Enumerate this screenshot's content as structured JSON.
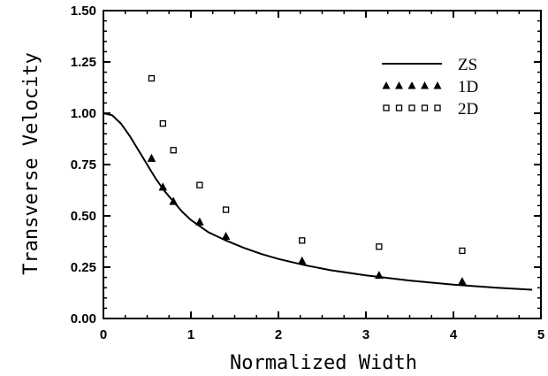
{
  "chart_data": {
    "type": "scatter",
    "xlabel": "Normalized Width",
    "ylabel": "Transverse Velocity",
    "xlim": [
      0,
      5
    ],
    "ylim": [
      0,
      1.5
    ],
    "x_ticks": [
      "0",
      "1",
      "2",
      "3",
      "4",
      "5"
    ],
    "y_ticks": [
      "0.00",
      "0.25",
      "0.50",
      "0.75",
      "1.00",
      "1.25",
      "1.50"
    ],
    "grid": false,
    "legend_position": "top-right",
    "series": [
      {
        "name": "ZS",
        "type": "line",
        "color": "#000000",
        "x": [
          0,
          0.1,
          0.2,
          0.3,
          0.4,
          0.5,
          0.6,
          0.7,
          0.8,
          0.9,
          1.0,
          1.2,
          1.4,
          1.6,
          1.8,
          2.0,
          2.3,
          2.6,
          3.0,
          3.5,
          4.0,
          4.5,
          4.9
        ],
        "y": [
          1.0,
          0.99,
          0.95,
          0.89,
          0.82,
          0.75,
          0.68,
          0.62,
          0.57,
          0.52,
          0.48,
          0.42,
          0.38,
          0.345,
          0.315,
          0.29,
          0.26,
          0.235,
          0.21,
          0.185,
          0.165,
          0.15,
          0.14
        ]
      },
      {
        "name": "1D",
        "type": "scatter",
        "marker": "triangle",
        "color": "#000000",
        "x": [
          0.55,
          0.68,
          0.8,
          1.1,
          1.4,
          2.27,
          3.15,
          4.1
        ],
        "y": [
          0.78,
          0.64,
          0.57,
          0.47,
          0.4,
          0.28,
          0.21,
          0.18
        ]
      },
      {
        "name": "2D",
        "type": "scatter",
        "marker": "square",
        "color": "#000000",
        "x": [
          0.55,
          0.68,
          0.8,
          1.1,
          1.4,
          2.27,
          3.15,
          4.1
        ],
        "y": [
          1.17,
          0.95,
          0.82,
          0.65,
          0.53,
          0.38,
          0.35,
          0.33
        ]
      }
    ]
  }
}
